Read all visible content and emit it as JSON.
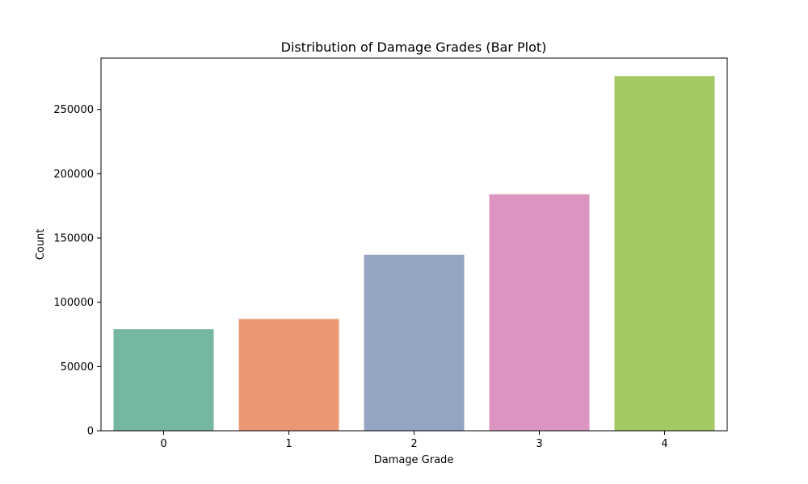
{
  "chart_data": {
    "type": "bar",
    "title": "Distribution of Damage Grades (Bar Plot)",
    "xlabel": "Damage Grade",
    "ylabel": "Count",
    "categories": [
      "0",
      "1",
      "2",
      "3",
      "4"
    ],
    "values": [
      79000,
      87000,
      137000,
      184000,
      276000
    ],
    "ylim": [
      0,
      290000
    ],
    "yticks": [
      0,
      50000,
      100000,
      150000,
      200000,
      250000
    ],
    "ytick_labels": [
      "0",
      "50000",
      "100000",
      "150000",
      "200000",
      "250000"
    ],
    "colors": [
      "#76b7a0",
      "#ea9874",
      "#95a4c3",
      "#db95c0",
      "#a3c864"
    ],
    "grid": false,
    "legend": "none"
  }
}
